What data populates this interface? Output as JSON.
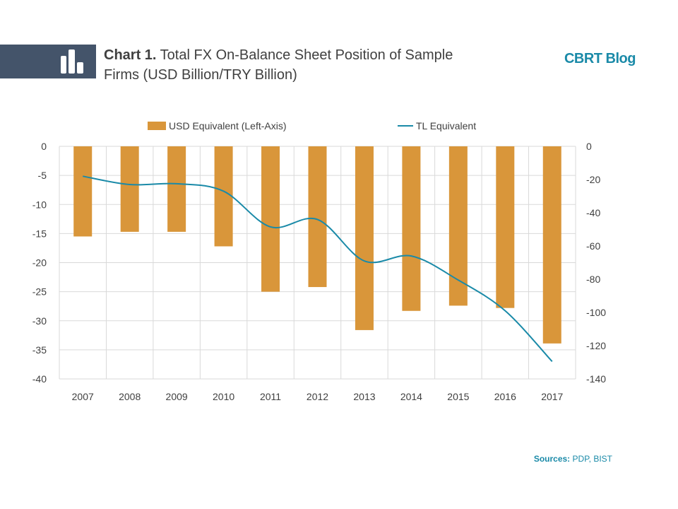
{
  "header": {
    "title_number": "Chart 1.",
    "title_text": "Total FX On-Balance Sheet Position of Sample Firms (USD Billion/TRY Billion)",
    "brand": "CBRT Blog",
    "icon": "bar-chart-icon"
  },
  "colors": {
    "bar": "#d9963a",
    "line": "#1a8aa8",
    "accent": "#1a8aa8",
    "header_band": "#44546a",
    "grid": "#d9d9d9"
  },
  "chart_data": {
    "type": "bar",
    "categories": [
      "2007",
      "2008",
      "2009",
      "2010",
      "2011",
      "2012",
      "2013",
      "2014",
      "2015",
      "2016",
      "2017"
    ],
    "series": [
      {
        "name": "USD Equivalent (Left-Axis)",
        "type": "bar",
        "axis": "left",
        "values": [
          -15.5,
          -14.7,
          -14.7,
          -17.2,
          -25.0,
          -24.2,
          -31.6,
          -28.3,
          -27.4,
          -27.8,
          -33.9
        ]
      },
      {
        "name": "TL Equivalent",
        "type": "line",
        "axis": "right",
        "values": [
          -18,
          -23,
          -22.5,
          -27,
          -48.5,
          -44,
          -69,
          -66,
          -80.5,
          -99,
          -129.5
        ]
      }
    ],
    "y_left": {
      "min": -40,
      "max": 0,
      "ticks": [
        "0",
        "-5",
        "-10",
        "-15",
        "-20",
        "-25",
        "-30",
        "-35",
        "-40"
      ]
    },
    "y_right": {
      "min": -140,
      "max": 0,
      "ticks": [
        "0",
        "-20",
        "-40",
        "-60",
        "-80",
        "-100",
        "-120",
        "-140"
      ]
    },
    "grid": true,
    "legend_position": "top"
  },
  "footer": {
    "sources_label": "Sources:",
    "sources_text": "PDP, BIST"
  }
}
